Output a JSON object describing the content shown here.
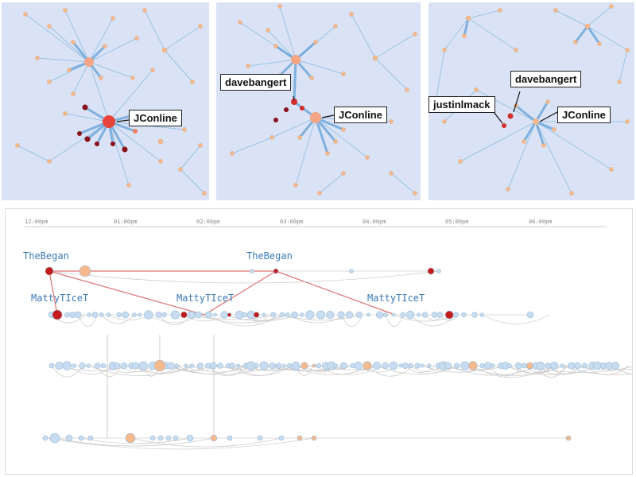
{
  "panels": [
    {
      "labels": [
        "JConline"
      ]
    },
    {
      "labels": [
        "davebangert",
        "JConline"
      ]
    },
    {
      "labels": [
        "davebangert",
        "justinlmack",
        "JConline"
      ]
    }
  ],
  "timeline": {
    "ticks": [
      "12:00pm",
      "01:00pm",
      "02:00pm",
      "03:00pm",
      "04:00pm",
      "05:00pm",
      "06:00pm"
    ],
    "users": [
      "TheBegan",
      "TheBegan",
      "MattyTIceT",
      "MattyTIceT",
      "MattyTIceT"
    ]
  },
  "colors": {
    "panel_bg": "#d9e3f5",
    "edge": "#6fa8d6",
    "node": "#f5b98d",
    "hub": "#f07f63",
    "highlight": "#c41a1a",
    "dark_red": "#8b0e1a",
    "timeline_node": "#c7dcf0",
    "retweet_line": "#e07070"
  }
}
